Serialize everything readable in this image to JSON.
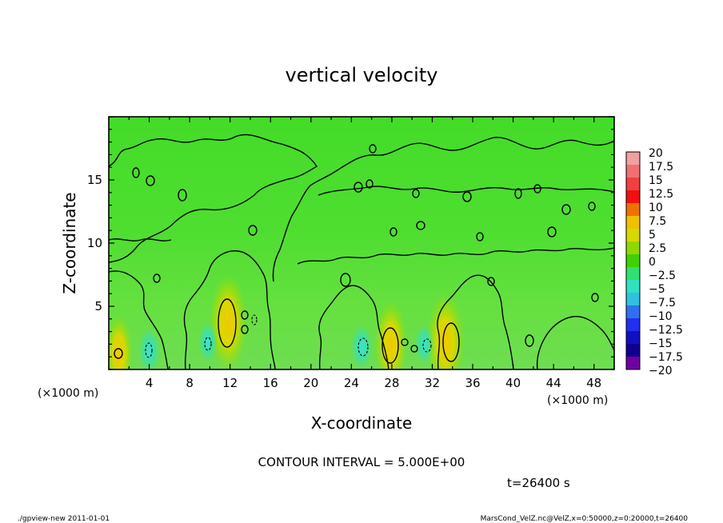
{
  "chart_data": {
    "type": "heatmap",
    "title": "vertical velocity",
    "xlabel": "X-coordinate",
    "ylabel": "Z-coordinate",
    "x_unit_left": "(×1000 m)",
    "x_unit_right": "(×1000 m)",
    "xlim": [
      0,
      50
    ],
    "ylim": [
      0,
      20
    ],
    "x_ticks": [
      "4",
      "8",
      "12",
      "16",
      "20",
      "24",
      "28",
      "32",
      "36",
      "40",
      "44",
      "48"
    ],
    "y_ticks": [
      "5",
      "10",
      "15"
    ],
    "contour_interval_label": "CONTOUR INTERVAL = 5.000E+00",
    "time_label": "t=26400 s",
    "colorbar": {
      "levels": [
        "20",
        "17.5",
        "15",
        "12.5",
        "10",
        "7.5",
        "5",
        "2.5",
        "0",
        "−2.5",
        "−5",
        "−7.5",
        "−10",
        "−12.5",
        "−15",
        "−17.5",
        "−20"
      ],
      "colors": [
        "#f0a0a0",
        "#f07070",
        "#f04040",
        "#f01010",
        "#f07000",
        "#f0c000",
        "#d8d800",
        "#90d800",
        "#40d000",
        "#30e070",
        "#30e0c0",
        "#30c0e0",
        "#3070f0",
        "#2030f0",
        "#1010c0",
        "#100090",
        "#7000a0"
      ]
    },
    "features": [
      {
        "kind": "updraft",
        "x": 11.8,
        "z": 3.7,
        "value": 7.5
      },
      {
        "kind": "updraft",
        "x": 27.9,
        "z": 2.0,
        "value": 5
      },
      {
        "kind": "updraft",
        "x": 33.3,
        "z": 2.2,
        "value": 7.5
      },
      {
        "kind": "updraft",
        "x": 1.0,
        "z": 1.3,
        "value": 2.5
      },
      {
        "kind": "downdraft",
        "x": 4.0,
        "z": 1.5,
        "value": -5
      },
      {
        "kind": "downdraft",
        "x": 9.8,
        "z": 2.2,
        "value": -2.5
      },
      {
        "kind": "downdraft",
        "x": 25.0,
        "z": 1.8,
        "value": -5
      },
      {
        "kind": "downdraft",
        "x": 31.2,
        "z": 2.0,
        "value": -2.5
      }
    ]
  },
  "footer": {
    "left": "./gpview-new  2011-01-01",
    "right": "MarsCond_VelZ.nc@VelZ,x=0:50000,z=0:20000,t=26400"
  }
}
